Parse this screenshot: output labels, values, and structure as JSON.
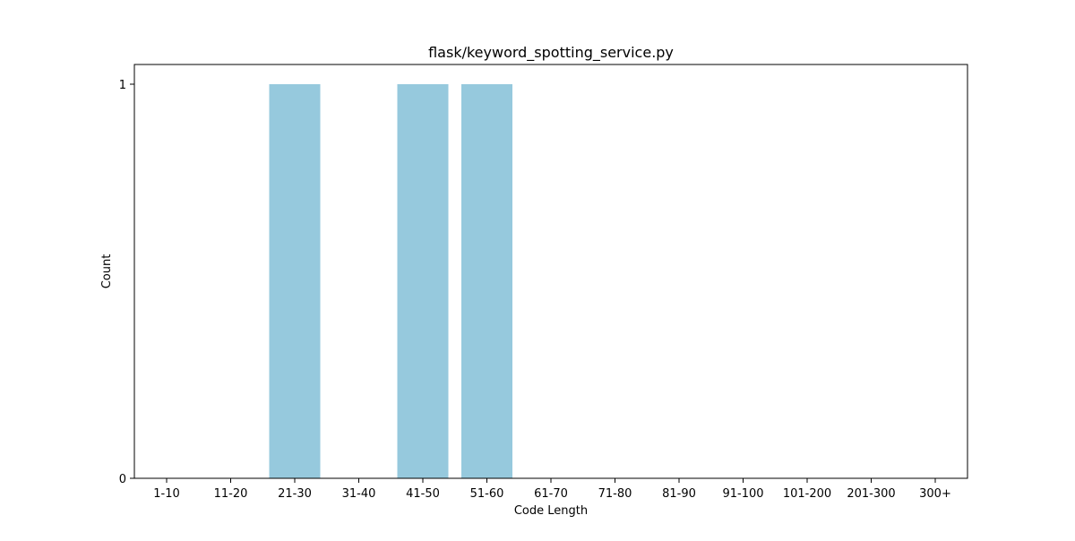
{
  "chart_data": {
    "type": "bar",
    "title": "flask/keyword_spotting_service.py",
    "xlabel": "Code Length",
    "ylabel": "Count",
    "categories": [
      "1-10",
      "11-20",
      "21-30",
      "31-40",
      "41-50",
      "51-60",
      "61-70",
      "71-80",
      "81-90",
      "91-100",
      "101-200",
      "201-300",
      "300+"
    ],
    "values": [
      0,
      0,
      1,
      0,
      1,
      1,
      0,
      0,
      0,
      0,
      0,
      0,
      0
    ],
    "yticks": [
      0,
      1
    ],
    "ylim": [
      0,
      1.05
    ],
    "grid": false,
    "bar_color": "#96c9dd"
  }
}
